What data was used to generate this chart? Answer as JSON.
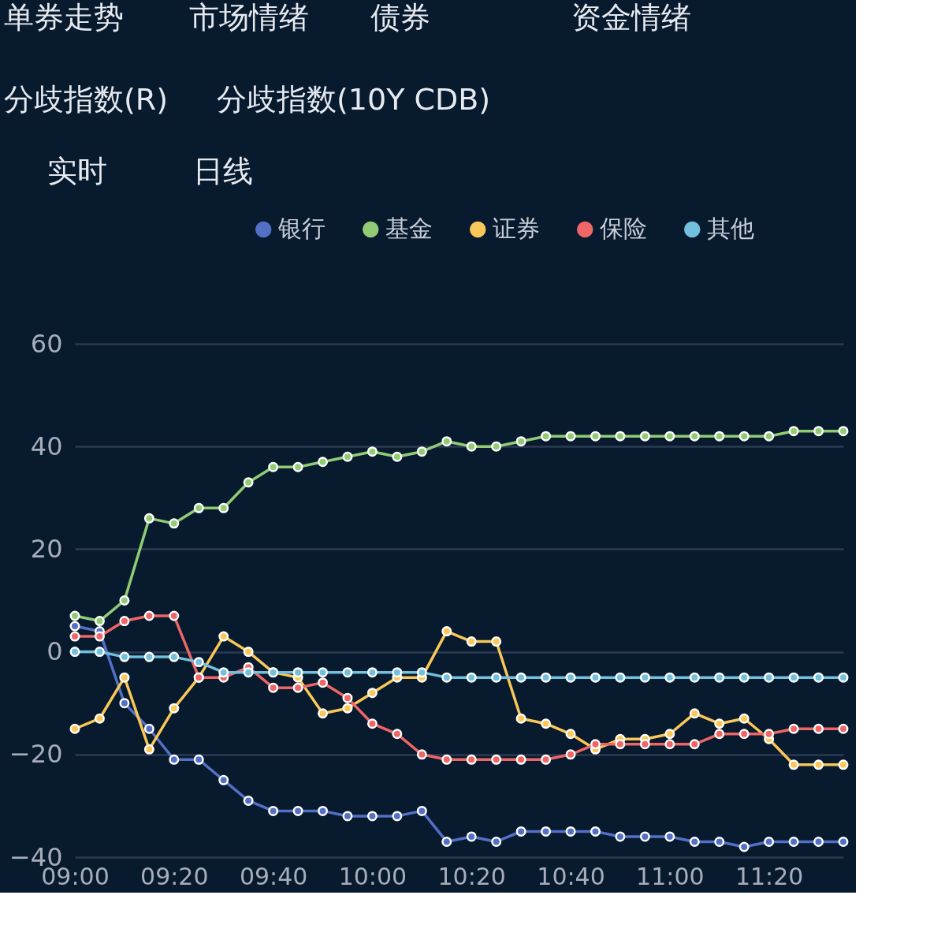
{
  "chart_data": {
    "type": "line",
    "annotations": [
      "单券走势",
      "市场情绪",
      "债券",
      "资金情绪",
      "分歧指数(R)",
      "分歧指数(10Y CDB)",
      "实时",
      "日线"
    ],
    "categories": [
      "09:00",
      null,
      null,
      null,
      "09:20",
      null,
      null,
      null,
      "09:40",
      null,
      null,
      null,
      "10:00",
      null,
      null,
      null,
      "10:20",
      null,
      null,
      null,
      "10:40",
      null,
      null,
      null,
      "11:00",
      null,
      null,
      null,
      "11:20",
      null,
      null,
      null
    ],
    "series": [
      {
        "name": "银行",
        "color": "#5470c6",
        "values": [
          5,
          4,
          -10,
          -15,
          -21,
          -21,
          -25,
          -29,
          -31,
          -31,
          -31,
          -32,
          -32,
          -32,
          -31,
          -37,
          -36,
          -37,
          -35,
          -35,
          -35,
          -35,
          -36,
          -36,
          -36,
          -37,
          -37,
          -38,
          -37,
          -37,
          -37,
          -37
        ]
      },
      {
        "name": "基金",
        "color": "#91cc75",
        "values": [
          7,
          6,
          10,
          26,
          25,
          28,
          28,
          33,
          36,
          36,
          37,
          38,
          39,
          38,
          39,
          41,
          40,
          40,
          41,
          42,
          42,
          42,
          42,
          42,
          42,
          42,
          42,
          42,
          42,
          43,
          43,
          43
        ]
      },
      {
        "name": "证券",
        "color": "#fac858",
        "values": [
          -15,
          -13,
          -5,
          -19,
          -11,
          -5,
          3,
          0,
          -4,
          -5,
          -12,
          -11,
          -8,
          -5,
          -5,
          4,
          2,
          2,
          -13,
          -14,
          -16,
          -19,
          -17,
          -17,
          -16,
          -12,
          -14,
          -13,
          -17,
          -22,
          -22,
          -22
        ]
      },
      {
        "name": "保险",
        "color": "#ee6666",
        "values": [
          3,
          3,
          6,
          7,
          7,
          -5,
          -5,
          -3,
          -7,
          -7,
          -6,
          -9,
          -14,
          -16,
          -20,
          -21,
          -21,
          -21,
          -21,
          -21,
          -20,
          -18,
          -18,
          -18,
          -18,
          -18,
          -16,
          -16,
          -16,
          -15,
          -15,
          -15
        ]
      },
      {
        "name": "其他",
        "color": "#73c0de",
        "values": [
          0,
          0,
          -1,
          -1,
          -1,
          -2,
          -4,
          -4,
          -4,
          -4,
          -4,
          -4,
          -4,
          -4,
          -4,
          -5,
          -5,
          -5,
          -5,
          -5,
          -5,
          -5,
          -5,
          -5,
          -5,
          -5,
          -5,
          -5,
          -5,
          -5,
          -5,
          -5
        ]
      }
    ],
    "ylim": [
      -40,
      60
    ],
    "yticks": [
      -40,
      -20,
      0,
      20,
      40,
      60
    ],
    "grid": "y",
    "legend": "top right",
    "marker": "circle",
    "line_style": "solid"
  }
}
